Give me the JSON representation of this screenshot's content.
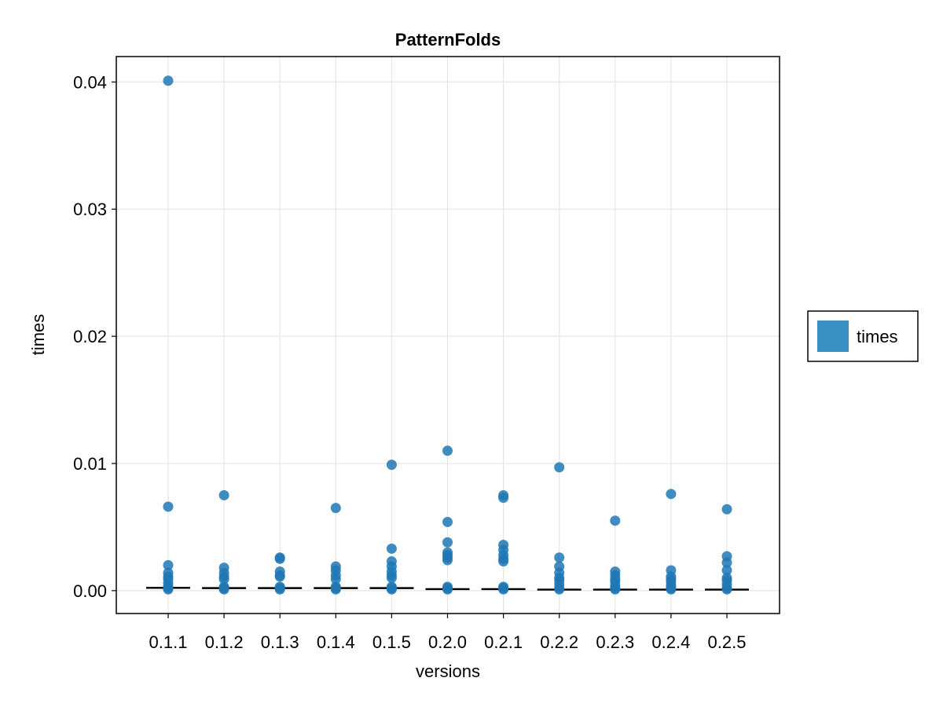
{
  "chart_data": {
    "type": "scatter",
    "title": "PatternFolds",
    "xlabel": "versions",
    "ylabel": "times",
    "categories": [
      "0.1.1",
      "0.1.2",
      "0.1.3",
      "0.1.4",
      "0.1.5",
      "0.2.0",
      "0.2.1",
      "0.2.2",
      "0.2.3",
      "0.2.4",
      "0.2.5"
    ],
    "ylim": [
      -0.0018,
      0.042
    ],
    "yticks": [
      0.0,
      0.01,
      0.02,
      0.03,
      0.04
    ],
    "ytick_labels": [
      "0.00",
      "0.01",
      "0.02",
      "0.03",
      "0.04"
    ],
    "grid": true,
    "legend": {
      "position": "right",
      "entries": [
        {
          "label": "times",
          "color": "#3a8fc3"
        }
      ]
    },
    "marker_color": "#1f77b4",
    "median_color": "#000000",
    "series": [
      {
        "name": "times",
        "points": [
          [
            "0.1.1",
            0.0401
          ],
          [
            "0.1.1",
            0.0066
          ],
          [
            "0.1.1",
            0.002
          ],
          [
            "0.1.1",
            0.0014
          ],
          [
            "0.1.1",
            0.0011
          ],
          [
            "0.1.1",
            0.0009
          ],
          [
            "0.1.1",
            0.0006
          ],
          [
            "0.1.1",
            0.0003
          ],
          [
            "0.1.1",
            0.0002
          ],
          [
            "0.1.1",
            0.0001
          ],
          [
            "0.1.2",
            0.0075
          ],
          [
            "0.1.2",
            0.0018
          ],
          [
            "0.1.2",
            0.0014
          ],
          [
            "0.1.2",
            0.0011
          ],
          [
            "0.1.2",
            0.0009
          ],
          [
            "0.1.2",
            0.0003
          ],
          [
            "0.1.2",
            0.0002
          ],
          [
            "0.1.2",
            0.0001
          ],
          [
            "0.1.3",
            0.0026
          ],
          [
            "0.1.3",
            0.0025
          ],
          [
            "0.1.3",
            0.0015
          ],
          [
            "0.1.3",
            0.0012
          ],
          [
            "0.1.3",
            0.0011
          ],
          [
            "0.1.3",
            0.0003
          ],
          [
            "0.1.3",
            0.0002
          ],
          [
            "0.1.3",
            0.0001
          ],
          [
            "0.1.4",
            0.0065
          ],
          [
            "0.1.4",
            0.0019
          ],
          [
            "0.1.4",
            0.0016
          ],
          [
            "0.1.4",
            0.0012
          ],
          [
            "0.1.4",
            0.0009
          ],
          [
            "0.1.4",
            0.0003
          ],
          [
            "0.1.4",
            0.0002
          ],
          [
            "0.1.4",
            0.0001
          ],
          [
            "0.1.5",
            0.0099
          ],
          [
            "0.1.5",
            0.0033
          ],
          [
            "0.1.5",
            0.0023
          ],
          [
            "0.1.5",
            0.0019
          ],
          [
            "0.1.5",
            0.0015
          ],
          [
            "0.1.5",
            0.0012
          ],
          [
            "0.1.5",
            0.001
          ],
          [
            "0.1.5",
            0.0003
          ],
          [
            "0.1.5",
            0.0002
          ],
          [
            "0.1.5",
            0.0001
          ],
          [
            "0.2.0",
            0.011
          ],
          [
            "0.2.0",
            0.0054
          ],
          [
            "0.2.0",
            0.0038
          ],
          [
            "0.2.0",
            0.003
          ],
          [
            "0.2.0",
            0.0028
          ],
          [
            "0.2.0",
            0.0026
          ],
          [
            "0.2.0",
            0.0024
          ],
          [
            "0.2.0",
            0.0003
          ],
          [
            "0.2.0",
            0.0002
          ],
          [
            "0.2.0",
            0.0001
          ],
          [
            "0.2.1",
            0.0075
          ],
          [
            "0.2.1",
            0.0073
          ],
          [
            "0.2.1",
            0.0036
          ],
          [
            "0.2.1",
            0.0032
          ],
          [
            "0.2.1",
            0.0028
          ],
          [
            "0.2.1",
            0.0025
          ],
          [
            "0.2.1",
            0.0023
          ],
          [
            "0.2.1",
            0.0003
          ],
          [
            "0.2.1",
            0.0002
          ],
          [
            "0.2.1",
            0.0001
          ],
          [
            "0.2.2",
            0.0097
          ],
          [
            "0.2.2",
            0.0026
          ],
          [
            "0.2.2",
            0.0019
          ],
          [
            "0.2.2",
            0.0014
          ],
          [
            "0.2.2",
            0.001
          ],
          [
            "0.2.2",
            0.0008
          ],
          [
            "0.2.2",
            0.0005
          ],
          [
            "0.2.2",
            0.0002
          ],
          [
            "0.2.2",
            0.0001
          ],
          [
            "0.2.3",
            0.0055
          ],
          [
            "0.2.3",
            0.0015
          ],
          [
            "0.2.3",
            0.0012
          ],
          [
            "0.2.3",
            0.0009
          ],
          [
            "0.2.3",
            0.0007
          ],
          [
            "0.2.3",
            0.0004
          ],
          [
            "0.2.3",
            0.0002
          ],
          [
            "0.2.3",
            0.0001
          ],
          [
            "0.2.4",
            0.0076
          ],
          [
            "0.2.4",
            0.0016
          ],
          [
            "0.2.4",
            0.0011
          ],
          [
            "0.2.4",
            0.0009
          ],
          [
            "0.2.4",
            0.0007
          ],
          [
            "0.2.4",
            0.0004
          ],
          [
            "0.2.4",
            0.0002
          ],
          [
            "0.2.4",
            0.0001
          ],
          [
            "0.2.5",
            0.0064
          ],
          [
            "0.2.5",
            0.0027
          ],
          [
            "0.2.5",
            0.0022
          ],
          [
            "0.2.5",
            0.0016
          ],
          [
            "0.2.5",
            0.001
          ],
          [
            "0.2.5",
            0.0008
          ],
          [
            "0.2.5",
            0.0005
          ],
          [
            "0.2.5",
            0.0002
          ],
          [
            "0.2.5",
            0.0001
          ]
        ]
      }
    ],
    "medians": [
      [
        "0.1.1",
        0.00022
      ],
      [
        "0.1.2",
        0.0002
      ],
      [
        "0.1.3",
        0.0002
      ],
      [
        "0.1.4",
        0.0002
      ],
      [
        "0.1.5",
        0.0002
      ],
      [
        "0.2.0",
        0.00012
      ],
      [
        "0.2.1",
        0.00012
      ],
      [
        "0.2.2",
        8e-05
      ],
      [
        "0.2.3",
        8e-05
      ],
      [
        "0.2.4",
        8e-05
      ],
      [
        "0.2.5",
        8e-05
      ]
    ]
  }
}
